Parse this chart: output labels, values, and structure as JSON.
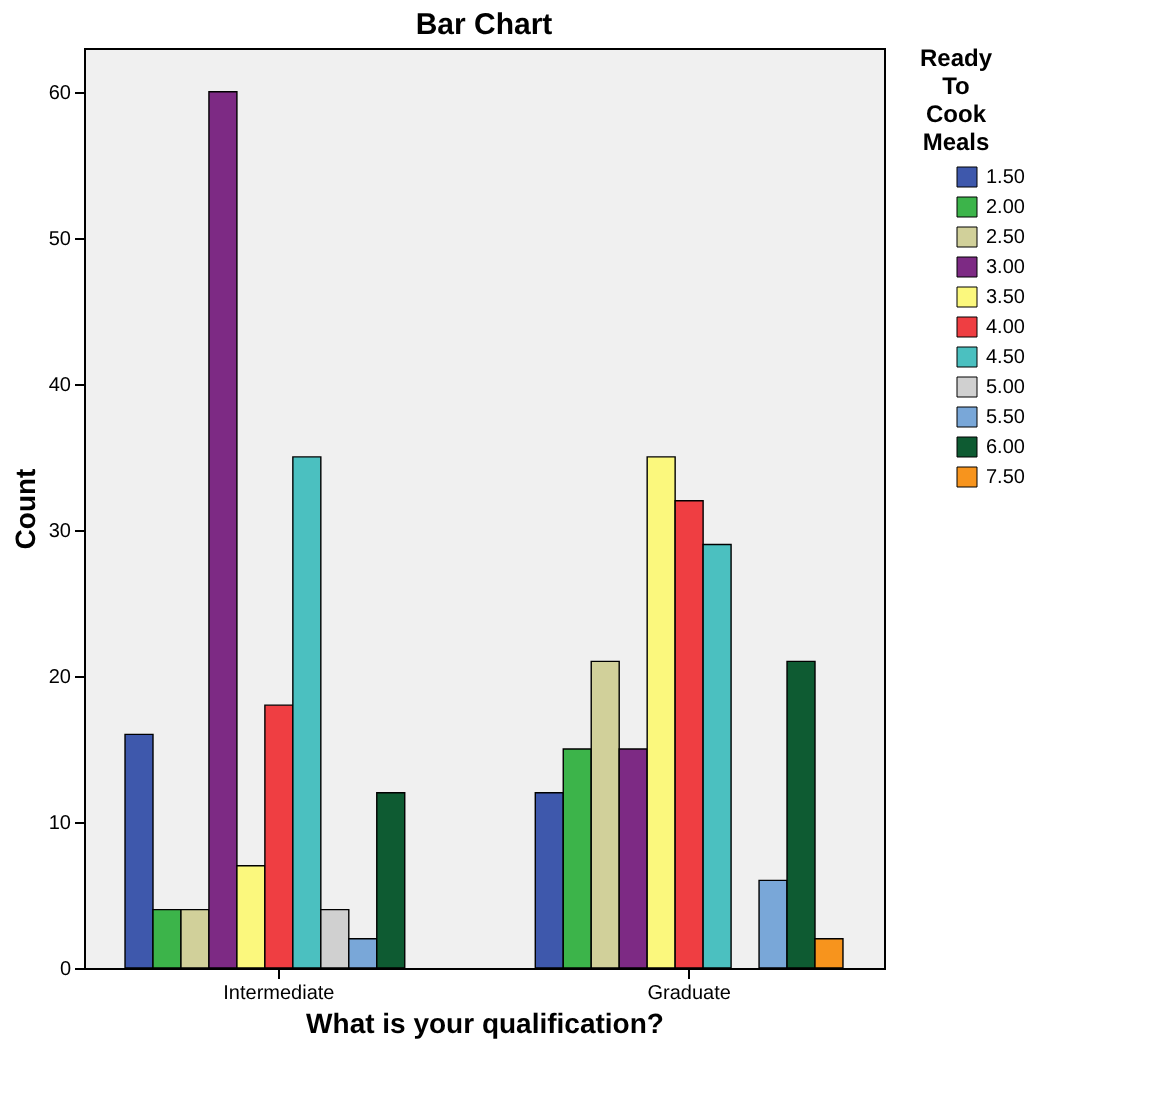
{
  "chart_data": {
    "type": "bar",
    "title": "Bar Chart",
    "xlabel": "What is your qualification?",
    "ylabel": "Count",
    "legend_title": "Ready To Cook Meals",
    "legend": "right",
    "grid": false,
    "categories": [
      "Intermediate",
      "Graduate"
    ],
    "ylim": [
      0,
      63
    ],
    "yticks": [
      0,
      10,
      20,
      30,
      40,
      50,
      60
    ],
    "series": [
      {
        "name": "1.50",
        "color": "#3e58ac",
        "values": [
          16,
          12
        ]
      },
      {
        "name": "2.00",
        "color": "#3cb44a",
        "values": [
          4,
          15
        ]
      },
      {
        "name": "2.50",
        "color": "#d1d09a",
        "values": [
          4,
          21
        ]
      },
      {
        "name": "3.00",
        "color": "#7d2a84",
        "values": [
          60,
          15
        ]
      },
      {
        "name": "3.50",
        "color": "#fbf87d",
        "values": [
          7,
          35
        ]
      },
      {
        "name": "4.00",
        "color": "#ef3e42",
        "values": [
          18,
          32
        ]
      },
      {
        "name": "4.50",
        "color": "#4bc0c0",
        "values": [
          35,
          29
        ]
      },
      {
        "name": "5.00",
        "color": "#d0d0d0",
        "values": [
          4,
          null
        ]
      },
      {
        "name": "5.50",
        "color": "#79a7d8",
        "values": [
          2,
          6
        ]
      },
      {
        "name": "6.00",
        "color": "#0e5b32",
        "values": [
          12,
          21
        ]
      },
      {
        "name": "7.50",
        "color": "#f7941d",
        "values": [
          null,
          2
        ]
      }
    ]
  }
}
